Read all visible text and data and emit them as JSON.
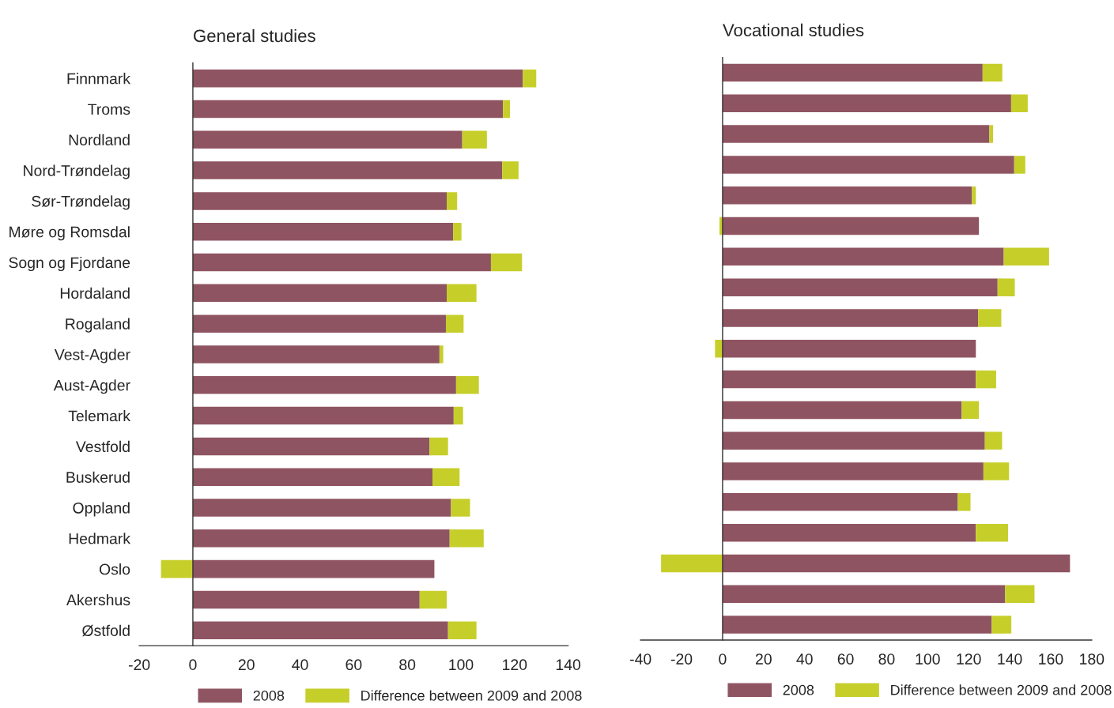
{
  "chart_data": [
    {
      "type": "bar",
      "title": "General studies",
      "orientation": "horizontal",
      "stacked": true,
      "legend": "bottom",
      "categories": [
        "Finnmark",
        "Troms",
        "Nordland",
        "Nord-Trøndelag",
        "Sør-Trøndelag",
        "Møre og Romsdal",
        "Sogn og Fjordane",
        "Hordaland",
        "Rogaland",
        "Vest-Agder",
        "Aust-Agder",
        "Telemark",
        "Vestfold",
        "Buskerud",
        "Oppland",
        "Hedmark",
        "Oslo",
        "Akershus",
        "Østfold"
      ],
      "series": [
        {
          "name": "2008",
          "color": "#8f5462",
          "values": [
            123.1,
            115.7,
            100.5,
            115.4,
            94.7,
            97.1,
            111.2,
            94.7,
            94.4,
            92.0,
            98.2,
            97.3,
            88.3,
            89.4,
            96.3,
            95.8,
            90.1,
            84.6,
            95.2
          ]
        },
        {
          "name": "Difference between 2009 and 2008",
          "color": "#c6cf2a",
          "values": [
            5.0,
            2.6,
            9.2,
            6.1,
            3.9,
            3.1,
            11.6,
            11.1,
            6.6,
            1.4,
            8.5,
            3.5,
            6.9,
            10.1,
            7.1,
            12.7,
            -11.9,
            10.1,
            10.6
          ]
        }
      ],
      "xlim": [
        -20,
        140
      ],
      "xticks": [
        -20,
        0,
        20,
        40,
        60,
        80,
        100,
        120,
        140
      ]
    },
    {
      "type": "bar",
      "title": "Vocational studies",
      "orientation": "horizontal",
      "stacked": true,
      "legend": "bottom",
      "tick_labels": "x",
      "categories": [
        null,
        null,
        null,
        null,
        null,
        null,
        null,
        null,
        null,
        null,
        null,
        null,
        null,
        null,
        null,
        null,
        null,
        null,
        null
      ],
      "series": [
        {
          "name": "2008",
          "color": "#8f5462",
          "values": [
            126.8,
            140.7,
            130.1,
            142.2,
            121.6,
            125.0,
            137.1,
            134.1,
            124.6,
            123.5,
            123.5,
            116.6,
            127.9,
            127.2,
            114.7,
            123.5,
            169.4,
            137.8,
            131.2
          ]
        },
        {
          "name": "Difference between 2009 and 2008",
          "color": "#c6cf2a",
          "values": [
            9.6,
            8.1,
            1.8,
            5.4,
            1.9,
            -1.5,
            22.1,
            8.4,
            11.3,
            -3.7,
            9.9,
            8.4,
            8.4,
            12.5,
            6.2,
            15.7,
            -30.0,
            14.3,
            9.6
          ]
        }
      ],
      "xlim": [
        -40,
        180
      ],
      "xticks": [
        -40,
        -20,
        0,
        20,
        40,
        60,
        80,
        100,
        120,
        140,
        160,
        180
      ]
    }
  ]
}
